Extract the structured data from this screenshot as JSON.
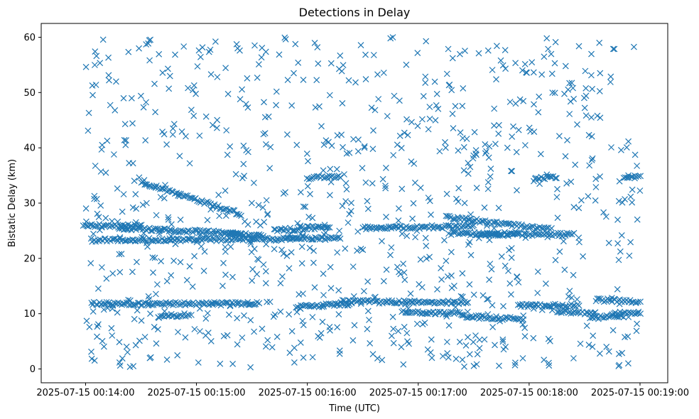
{
  "chart_data": {
    "type": "scatter",
    "title": "Detections in Delay",
    "xlabel": "Time (UTC)",
    "ylabel": "Bistatic Delay (km)",
    "marker": "x",
    "color": "#1f77b4",
    "xlim": [
      13.6,
      19.25
    ],
    "ylim": [
      -2.5,
      62.5
    ],
    "xticks": [
      {
        "value": 14,
        "label": "2025-07-15 00:14:00"
      },
      {
        "value": 15,
        "label": "2025-07-15 00:15:00"
      },
      {
        "value": 16,
        "label": "2025-07-15 00:16:00"
      },
      {
        "value": 17,
        "label": "2025-07-15 00:17:00"
      },
      {
        "value": 18,
        "label": "2025-07-15 00:18:00"
      },
      {
        "value": 19,
        "label": "2025-07-15 00:19:00"
      }
    ],
    "yticks": [
      0,
      10,
      20,
      30,
      40,
      50,
      60
    ],
    "x_unit": "minutes after 00:00 UTC",
    "tracks": [
      {
        "x0": 13.98,
        "y0": 26.0,
        "x1": 14.5,
        "y1": 25.8
      },
      {
        "x0": 14.05,
        "y0": 23.3,
        "x1": 15.9,
        "y1": 23.5
      },
      {
        "x0": 14.5,
        "y0": 33.8,
        "x1": 15.4,
        "y1": 28.0
      },
      {
        "x0": 14.05,
        "y0": 11.8,
        "x1": 15.55,
        "y1": 11.8
      },
      {
        "x0": 14.3,
        "y0": 25.5,
        "x1": 15.4,
        "y1": 24.5
      },
      {
        "x0": 14.65,
        "y0": 9.5,
        "x1": 14.95,
        "y1": 9.8
      },
      {
        "x0": 15.9,
        "y0": 11.2,
        "x1": 16.4,
        "y1": 11.8
      },
      {
        "x0": 15.7,
        "y0": 25.0,
        "x1": 16.2,
        "y1": 25.8
      },
      {
        "x0": 15.3,
        "y0": 24.5,
        "x1": 15.6,
        "y1": 24.2
      },
      {
        "x0": 16.5,
        "y0": 25.5,
        "x1": 17.5,
        "y1": 25.8
      },
      {
        "x0": 16.3,
        "y0": 12.2,
        "x1": 17.45,
        "y1": 12.0
      },
      {
        "x0": 16.85,
        "y0": 10.3,
        "x1": 17.4,
        "y1": 10.0
      },
      {
        "x0": 16.0,
        "y0": 34.5,
        "x1": 16.3,
        "y1": 34.8
      },
      {
        "x0": 17.25,
        "y0": 27.5,
        "x1": 18.2,
        "y1": 25.2
      },
      {
        "x0": 17.3,
        "y0": 24.5,
        "x1": 18.4,
        "y1": 24.3
      },
      {
        "x0": 17.4,
        "y0": 9.5,
        "x1": 17.95,
        "y1": 9.0
      },
      {
        "x0": 17.9,
        "y0": 11.5,
        "x1": 18.45,
        "y1": 11.5
      },
      {
        "x0": 18.25,
        "y0": 10.5,
        "x1": 18.6,
        "y1": 10.0
      },
      {
        "x0": 18.55,
        "y0": 9.3,
        "x1": 18.85,
        "y1": 9.5
      },
      {
        "x0": 18.6,
        "y0": 12.5,
        "x1": 19.0,
        "y1": 12.2
      },
      {
        "x0": 18.75,
        "y0": 10.0,
        "x1": 19.0,
        "y1": 10.3
      },
      {
        "x0": 18.85,
        "y0": 34.8,
        "x1": 19.0,
        "y1": 34.8
      },
      {
        "x0": 18.05,
        "y0": 34.5,
        "x1": 18.25,
        "y1": 34.6
      },
      {
        "x0": 15.8,
        "y0": 23.8,
        "x1": 16.3,
        "y1": 23.6
      },
      {
        "x0": 17.55,
        "y0": 24.2,
        "x1": 17.9,
        "y1": 24.6
      }
    ],
    "track_note": "Dense streaks of x markers along approximate lines; plus roughly 900 scattered detections uniformly spread over 0-60 km delay between 00:14:00 and 00:19:00."
  }
}
